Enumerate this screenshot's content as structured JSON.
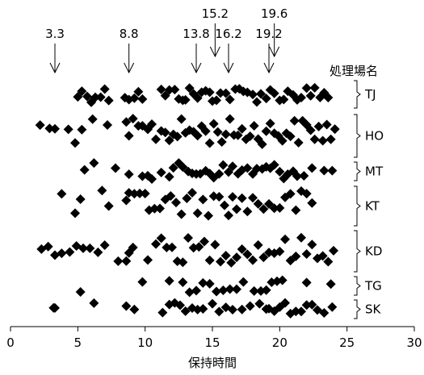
{
  "chart_data": {
    "type": "scatter",
    "title": "",
    "xlabel": "保持時間",
    "ylabel": "",
    "xlim": [
      0,
      30
    ],
    "x_ticks": [
      "0",
      "5",
      "10",
      "15",
      "20",
      "25",
      "30"
    ],
    "legend_title": "処理場名",
    "groups": [
      "TJ",
      "HO",
      "MT",
      "KT",
      "KD",
      "TG",
      "SK"
    ],
    "marker": "diamond",
    "marker_color": "#000000",
    "annotations": [
      {
        "label": "3.3",
        "x": 3.3
      },
      {
        "label": "8.8",
        "x": 8.8
      },
      {
        "label": "13.8",
        "x": 13.8
      },
      {
        "label": "15.2",
        "x": 15.2
      },
      {
        "label": "16.2",
        "x": 16.2
      },
      {
        "label": "19.2",
        "x": 19.2
      },
      {
        "label": "19.6",
        "x": 19.6
      }
    ],
    "series": [
      {
        "group": "TJ",
        "x": [
          5,
          5.3,
          5.7,
          6,
          6.3,
          6.7,
          7,
          7.3,
          8.5,
          8.8,
          9.2,
          9.5,
          9.8,
          11.2,
          11.5,
          11.8,
          12.2,
          12.5,
          12.8,
          13,
          13.3,
          13.6,
          13.9,
          14.2,
          14.5,
          14.8,
          15,
          15.3,
          15.6,
          16,
          16.3,
          16.7,
          17,
          17.3,
          17.6,
          18,
          18.3,
          18.6,
          19,
          19.3,
          19.6,
          20,
          20.3,
          20.6,
          21,
          21.3,
          21.6,
          22,
          22.3,
          22.6,
          23,
          23.3,
          23.6
        ]
      },
      {
        "group": "HO",
        "x": [
          2.2,
          2.9,
          3.3,
          4.3,
          4.8,
          5.3,
          6.1,
          7.2,
          8.6,
          8.8,
          9.1,
          9.5,
          9.8,
          10.2,
          10.5,
          10.8,
          11.2,
          11.5,
          11.8,
          12.1,
          12.4,
          12.7,
          13,
          13.3,
          13.6,
          13.9,
          14.2,
          14.5,
          14.8,
          15.1,
          15.4,
          15.7,
          16,
          16.3,
          16.6,
          16.9,
          17.2,
          17.5,
          17.8,
          18.1,
          18.4,
          18.7,
          19,
          19.3,
          19.6,
          19.9,
          20.2,
          20.5,
          20.8,
          21.1,
          21.4,
          21.7,
          22,
          22.3,
          22.6,
          22.9,
          23.2,
          23.5,
          23.8,
          24.1
        ]
      },
      {
        "group": "MT",
        "x": [
          5.5,
          6.2,
          7.8,
          8.8,
          9.8,
          10.2,
          10.5,
          11.2,
          11.8,
          12.1,
          12.5,
          12.8,
          13.2,
          13.5,
          13.8,
          14.1,
          14.5,
          14.8,
          15.1,
          15.5,
          15.8,
          16.2,
          16.5,
          16.9,
          17.2,
          17.6,
          18,
          18.3,
          18.7,
          19,
          19.3,
          19.6,
          20,
          20.3,
          20.6,
          21,
          21.3,
          21.8,
          22.4,
          23.3,
          23.9
        ]
      },
      {
        "group": "KT",
        "x": [
          3.8,
          4.8,
          5.2,
          6.8,
          7.3,
          8.6,
          8.8,
          9.2,
          9.6,
          10,
          10.3,
          10.7,
          11.1,
          11.5,
          11.9,
          12.3,
          12.7,
          13.1,
          13.5,
          13.9,
          14.3,
          14.7,
          15.1,
          15.5,
          15.9,
          16.2,
          16.5,
          16.8,
          17.2,
          17.6,
          18,
          18.4,
          18.8,
          19.2,
          19.6,
          20,
          20.4,
          20.8,
          21.2,
          21.6,
          22,
          22.4
        ]
      },
      {
        "group": "KD",
        "x": [
          2.3,
          2.8,
          3.3,
          3.8,
          4.4,
          4.9,
          5.4,
          5.9,
          6.5,
          7,
          8,
          8.6,
          8.8,
          9.1,
          10.2,
          10.8,
          11.2,
          11.6,
          12,
          12.4,
          12.8,
          13.2,
          13.6,
          14,
          14.4,
          14.8,
          15.2,
          15.6,
          16,
          16.4,
          16.8,
          17.2,
          17.6,
          18,
          18.4,
          18.8,
          19.2,
          19.6,
          20,
          20.4,
          20.8,
          21.2,
          21.6,
          22,
          22.4,
          22.8,
          23.2,
          23.6,
          24
        ]
      },
      {
        "group": "TG",
        "x": [
          5.2,
          9.8,
          11.8,
          12.8,
          13.3,
          13.8,
          14.3,
          14.8,
          15.3,
          15.8,
          16.3,
          16.8,
          17.3,
          18.1,
          18.6,
          19,
          19.4,
          19.8,
          20.2,
          22,
          23.8
        ]
      },
      {
        "group": "SK",
        "x": [
          3.2,
          3.3,
          6.2,
          8.6,
          9.2,
          11.3,
          11.8,
          12.2,
          12.6,
          13,
          13.5,
          13.9,
          14.3,
          15,
          15.5,
          16,
          16.5,
          17.2,
          17.8,
          18.5,
          19,
          19.2,
          19.6,
          20,
          20.4,
          20.8,
          21.2,
          21.6,
          22,
          22.4,
          22.8,
          23.3,
          23.9
        ]
      }
    ]
  }
}
